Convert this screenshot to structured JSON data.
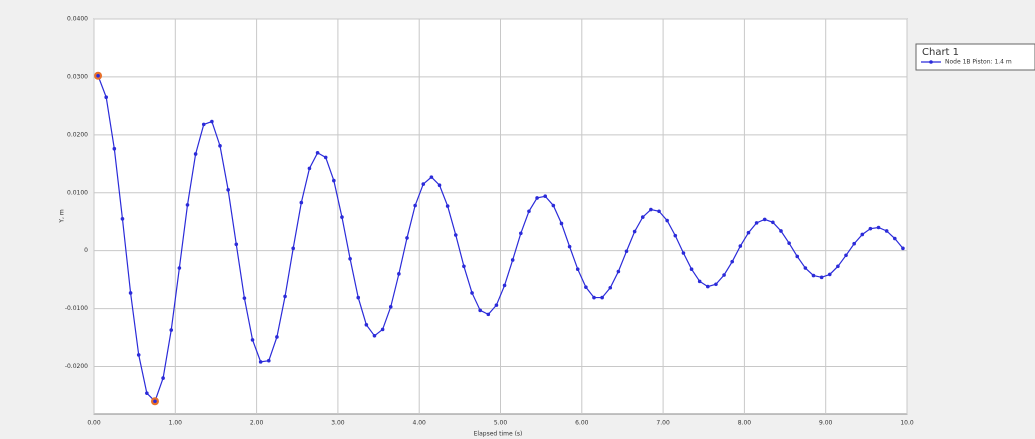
{
  "chart_data": {
    "type": "line",
    "legend_title": "Chart 1",
    "x_label": "Elapsed time (s)",
    "y_label": "Y, m",
    "x": [
      0.05,
      0.15,
      0.25,
      0.35,
      0.45,
      0.55,
      0.65,
      0.75,
      0.85,
      0.95,
      1.05,
      1.15,
      1.25,
      1.35,
      1.45,
      1.55,
      1.65,
      1.75,
      1.85,
      1.95,
      2.05,
      2.15,
      2.25,
      2.35,
      2.45,
      2.55,
      2.65,
      2.75,
      2.85,
      2.95,
      3.05,
      3.15,
      3.25,
      3.35,
      3.45,
      3.55,
      3.65,
      3.75,
      3.85,
      3.95,
      4.05,
      4.15,
      4.25,
      4.35,
      4.45,
      4.55,
      4.65,
      4.75,
      4.85,
      4.95,
      5.05,
      5.15,
      5.25,
      5.35,
      5.45,
      5.55,
      5.65,
      5.75,
      5.85,
      5.95,
      6.05,
      6.15,
      6.25,
      6.35,
      6.45,
      6.55,
      6.65,
      6.75,
      6.85,
      6.95,
      7.05,
      7.15,
      7.25,
      7.35,
      7.45,
      7.55,
      7.65,
      7.75,
      7.85,
      7.95,
      8.05,
      8.15,
      8.25,
      8.35,
      8.45,
      8.55,
      8.65,
      8.75,
      8.85,
      8.95,
      9.05,
      9.15,
      9.25,
      9.35,
      9.45,
      9.55,
      9.65,
      9.75,
      9.85,
      9.95
    ],
    "series": [
      {
        "name": "Node 1B Piston: 1.4 m",
        "color": "#2b2bd9",
        "values": [
          0.0302,
          0.0265,
          0.0176,
          0.0055,
          -0.0073,
          -0.018,
          -0.0246,
          -0.026,
          -0.022,
          -0.0137,
          -0.003,
          0.0079,
          0.0167,
          0.0218,
          0.0223,
          0.0181,
          0.0105,
          0.0011,
          -0.0082,
          -0.0154,
          -0.0192,
          -0.019,
          -0.0149,
          -0.0079,
          0.0004,
          0.0083,
          0.0142,
          0.0169,
          0.0161,
          0.0121,
          0.0058,
          -0.0014,
          -0.0081,
          -0.0128,
          -0.0147,
          -0.0136,
          -0.0097,
          -0.004,
          0.0022,
          0.0078,
          0.0115,
          0.0127,
          0.0113,
          0.0077,
          0.0027,
          -0.0027,
          -0.0073,
          -0.0103,
          -0.011,
          -0.0094,
          -0.006,
          -0.0016,
          0.003,
          0.0068,
          0.0091,
          0.0094,
          0.0078,
          0.0047,
          0.0007,
          -0.0032,
          -0.0063,
          -0.0081,
          -0.0081,
          -0.0064,
          -0.0036,
          -0.0001,
          0.0033,
          0.0058,
          0.0071,
          0.0068,
          0.0052,
          0.0026,
          -0.0004,
          -0.0032,
          -0.0053,
          -0.0062,
          -0.0058,
          -0.0042,
          -0.0019,
          0.0008,
          0.0031,
          0.0048,
          0.0054,
          0.0049,
          0.0034,
          0.0013,
          -0.001,
          -0.003,
          -0.0043,
          -0.0046,
          -0.0041,
          -0.0027,
          -0.0008,
          0.0012,
          0.0028,
          0.0038,
          0.004,
          0.0034,
          0.0021,
          0.0004
        ]
      }
    ],
    "highlighted_points": [
      0,
      7
    ],
    "highlight_color": "#e8702a",
    "xlim": [
      0,
      10
    ],
    "xticks": [
      {
        "value": 0,
        "label": "0.00"
      },
      {
        "value": 1,
        "label": "1.00"
      },
      {
        "value": 2,
        "label": "2.00"
      },
      {
        "value": 3,
        "label": "3.00"
      },
      {
        "value": 4,
        "label": "4.00"
      },
      {
        "value": 5,
        "label": "5.00"
      },
      {
        "value": 6,
        "label": "6.00"
      },
      {
        "value": 7,
        "label": "7.00"
      },
      {
        "value": 8,
        "label": "8.00"
      },
      {
        "value": 9,
        "label": "9.00"
      },
      {
        "value": 10,
        "label": "10.0"
      }
    ],
    "ylim": [
      -0.0282,
      0.04
    ],
    "yticks": [
      {
        "value": -0.02,
        "label": "-0.0200"
      },
      {
        "value": -0.01,
        "label": "-0.0100"
      },
      0,
      {
        "value": 0.01,
        "label": "0.0100"
      },
      {
        "value": 0.02,
        "label": "0.0200"
      },
      {
        "value": 0.03,
        "label": "0.0300"
      },
      {
        "value": 0.04,
        "label": "0.0400"
      }
    ],
    "grid": true
  }
}
